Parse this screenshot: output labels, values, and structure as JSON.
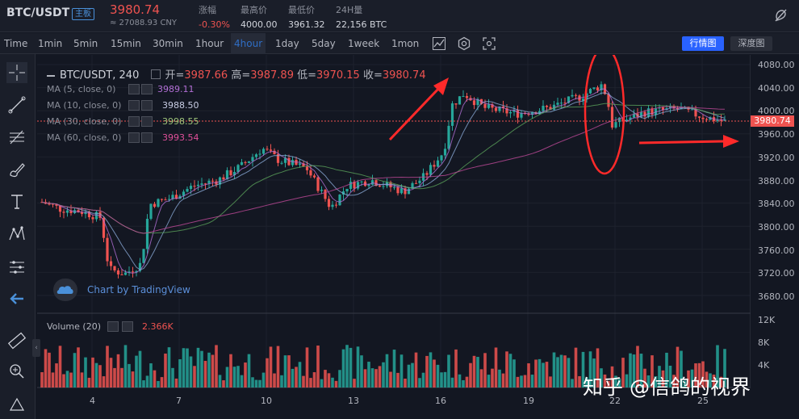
{
  "header": {
    "symbol": "BTC/USDT",
    "badge": "主板",
    "last_price": "3980.74",
    "cny_price": "≈ 27088.93 CNY",
    "stats": [
      {
        "label": "涨幅",
        "value": "-0.30%"
      },
      {
        "label": "最高价",
        "value": "4000.00"
      },
      {
        "label": "最低价",
        "value": "3961.32"
      },
      {
        "label": "24H量",
        "value": "22,156 BTC"
      }
    ]
  },
  "toolbar": {
    "timeframes": [
      "Time",
      "1min",
      "5min",
      "15min",
      "30min",
      "1hour",
      "4hour",
      "1day",
      "5day",
      "1week",
      "1mon"
    ],
    "active_timeframe": "4hour",
    "kline_label": "行情图",
    "depth_label": "深度图"
  },
  "legend": {
    "symbol_interval": "BTC/USDT, 240",
    "open_label": "开=",
    "open": "3987.66",
    "high_label": "高=",
    "high": "3987.89",
    "low_label": "低=",
    "low": "3970.15",
    "close_label": "收=",
    "close": "3980.74",
    "ma": [
      {
        "label": "MA (5, close, 0)",
        "value": "3989.11",
        "color": "#b26fd6"
      },
      {
        "label": "MA (10, close, 0)",
        "value": "3988.50",
        "color": "#8aa9d6"
      },
      {
        "label": "MA (30, close, 0)",
        "value": "3998.55",
        "color": "#5aa05a"
      },
      {
        "label": "MA (60, close, 0)",
        "value": "3993.54",
        "color": "#c04a9a"
      }
    ]
  },
  "branding": {
    "tradingview": "Chart by TradingView"
  },
  "volume": {
    "label": "Volume (20)",
    "value": "2.366K"
  },
  "watermark": "知乎 @信鸽的视界",
  "price_axis": [
    "4080.00",
    "4040.00",
    "4000.00",
    "3960.00",
    "3920.00",
    "3880.00",
    "3840.00",
    "3800.00",
    "3760.00",
    "3720.00",
    "3680.00"
  ],
  "volume_axis": [
    "12K",
    "8K",
    "4K"
  ],
  "time_axis": [
    "4",
    "7",
    "10",
    "13",
    "16",
    "19",
    "22",
    "25"
  ],
  "current_price_tag": "3980.74",
  "colors": {
    "up": "#26a69a",
    "down": "#ef5350",
    "background": "#131722",
    "annotation": "#ff2a2a"
  }
}
